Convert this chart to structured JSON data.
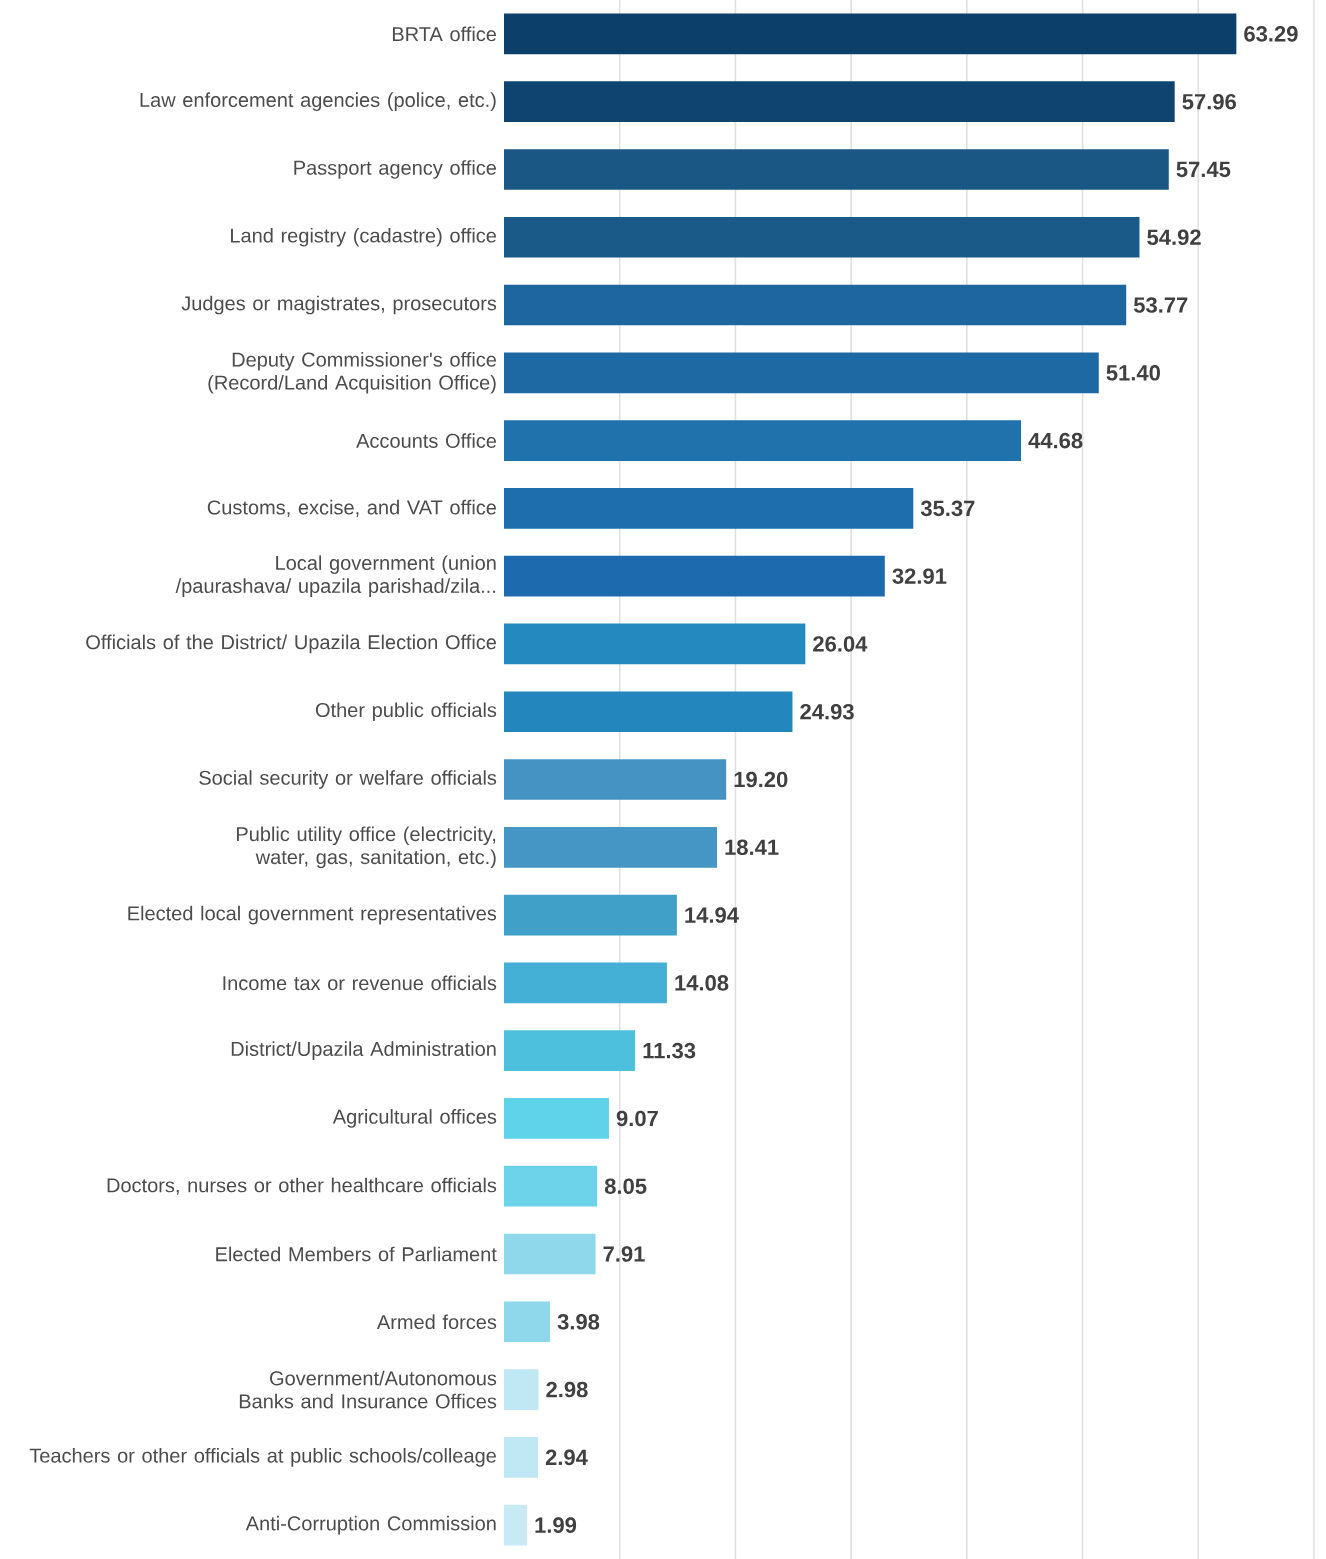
{
  "chart_data": {
    "type": "bar",
    "orientation": "horizontal",
    "categories": [
      "BRTA office",
      "Law enforcement agencies (police, etc.)",
      "Passport agency office",
      "Land registry (cadastre) office",
      "Judges or magistrates, prosecutors",
      "Deputy Commissioner's office (Record/Land Acquisition Office)",
      "Accounts Office",
      "Customs, excise, and VAT office",
      "Local government (union /paurashava/ upazila parishad/zila...",
      "Officials of the District/ Upazila Election Office",
      "Other public officials",
      "Social security or welfare officials",
      "Public utility office (electricity, water, gas, sanitation, etc.)",
      "Elected local government representatives",
      "Income tax or revenue officials",
      "District/Upazila Administration",
      "Agricultural offices",
      "Doctors, nurses or other healthcare officials",
      "Elected Members of Parliament",
      "Armed forces",
      "Government/Autonomous Banks and Insurance Offices",
      "Teachers or other officials at public schools/colleage",
      "Anti-Corruption Commission"
    ],
    "values": [
      63.29,
      57.96,
      57.45,
      54.92,
      53.77,
      51.4,
      44.68,
      35.37,
      32.91,
      26.04,
      24.93,
      19.2,
      18.41,
      14.94,
      14.08,
      11.33,
      9.07,
      8.05,
      7.91,
      3.98,
      2.98,
      2.94,
      1.99
    ],
    "value_labels": [
      "63.29",
      "57.96",
      "57.45",
      "54.92",
      "53.77",
      "51.40",
      "44.68",
      "35.37",
      "32.91",
      "26.04",
      "24.93",
      "19.20",
      "18.41",
      "14.94",
      "14.08",
      "11.33",
      "9.07",
      "8.05",
      "7.91",
      "3.98",
      "2.98",
      "2.94",
      "1.99"
    ],
    "colors": [
      "#0d3f6b",
      "#0f4470",
      "#1a5785",
      "#1a5a88",
      "#1d669f",
      "#1e69a3",
      "#1f72ab",
      "#1e6eae",
      "#1e6aae",
      "#2389bf",
      "#2386bc",
      "#4593c2",
      "#4596c4",
      "#41a0c8",
      "#45b0d6",
      "#4cc0dc",
      "#5fd3ea",
      "#6dd3ea",
      "#8fd8ec",
      "#8fd8ec",
      "#c0e8f4",
      "#c0e8f4",
      "#c8eaf5"
    ],
    "xlim": [
      0,
      70
    ],
    "xticks": [
      {
        "value": 10,
        "label": null
      },
      {
        "value": 20,
        "label": null
      },
      {
        "value": 30,
        "label": null
      },
      {
        "value": 40,
        "label": null
      },
      {
        "value": 50,
        "label": null
      },
      {
        "value": 60,
        "label": null
      },
      {
        "value": 70,
        "label": null
      }
    ],
    "grid": "x",
    "tick_labels": "y"
  }
}
